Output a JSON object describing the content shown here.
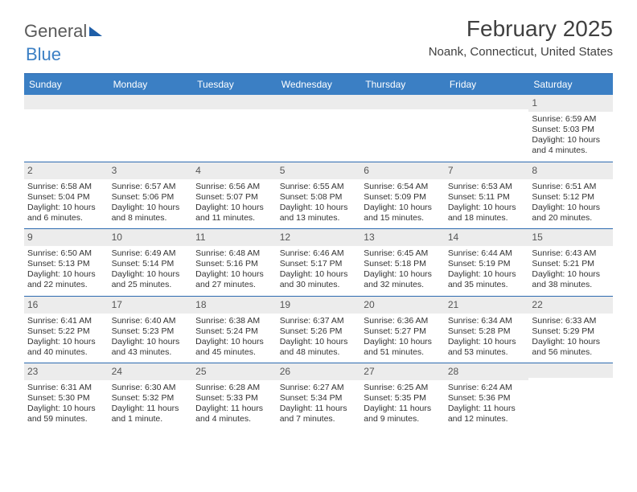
{
  "logo": {
    "word1": "General",
    "word2": "Blue"
  },
  "title": "February 2025",
  "location": "Noank, Connecticut, United States",
  "colors": {
    "header_band": "#3b7fc4",
    "rule": "#2d6ab0",
    "daynum_bg": "#ececec",
    "text": "#333333",
    "title_text": "#404040"
  },
  "typography": {
    "title_fontsize": 28,
    "location_fontsize": 15,
    "weekday_fontsize": 12,
    "cell_fontsize": 10.5
  },
  "weekdays": [
    "Sunday",
    "Monday",
    "Tuesday",
    "Wednesday",
    "Thursday",
    "Friday",
    "Saturday"
  ],
  "first_weekday_index": 6,
  "labels": {
    "sunrise_prefix": "Sunrise: ",
    "sunset_prefix": "Sunset: ",
    "daylight_prefix": "Daylight: "
  },
  "days": [
    {
      "n": 1,
      "sunrise": "6:59 AM",
      "sunset": "5:03 PM",
      "daylight": "10 hours and 4 minutes."
    },
    {
      "n": 2,
      "sunrise": "6:58 AM",
      "sunset": "5:04 PM",
      "daylight": "10 hours and 6 minutes."
    },
    {
      "n": 3,
      "sunrise": "6:57 AM",
      "sunset": "5:06 PM",
      "daylight": "10 hours and 8 minutes."
    },
    {
      "n": 4,
      "sunrise": "6:56 AM",
      "sunset": "5:07 PM",
      "daylight": "10 hours and 11 minutes."
    },
    {
      "n": 5,
      "sunrise": "6:55 AM",
      "sunset": "5:08 PM",
      "daylight": "10 hours and 13 minutes."
    },
    {
      "n": 6,
      "sunrise": "6:54 AM",
      "sunset": "5:09 PM",
      "daylight": "10 hours and 15 minutes."
    },
    {
      "n": 7,
      "sunrise": "6:53 AM",
      "sunset": "5:11 PM",
      "daylight": "10 hours and 18 minutes."
    },
    {
      "n": 8,
      "sunrise": "6:51 AM",
      "sunset": "5:12 PM",
      "daylight": "10 hours and 20 minutes."
    },
    {
      "n": 9,
      "sunrise": "6:50 AM",
      "sunset": "5:13 PM",
      "daylight": "10 hours and 22 minutes."
    },
    {
      "n": 10,
      "sunrise": "6:49 AM",
      "sunset": "5:14 PM",
      "daylight": "10 hours and 25 minutes."
    },
    {
      "n": 11,
      "sunrise": "6:48 AM",
      "sunset": "5:16 PM",
      "daylight": "10 hours and 27 minutes."
    },
    {
      "n": 12,
      "sunrise": "6:46 AM",
      "sunset": "5:17 PM",
      "daylight": "10 hours and 30 minutes."
    },
    {
      "n": 13,
      "sunrise": "6:45 AM",
      "sunset": "5:18 PM",
      "daylight": "10 hours and 32 minutes."
    },
    {
      "n": 14,
      "sunrise": "6:44 AM",
      "sunset": "5:19 PM",
      "daylight": "10 hours and 35 minutes."
    },
    {
      "n": 15,
      "sunrise": "6:43 AM",
      "sunset": "5:21 PM",
      "daylight": "10 hours and 38 minutes."
    },
    {
      "n": 16,
      "sunrise": "6:41 AM",
      "sunset": "5:22 PM",
      "daylight": "10 hours and 40 minutes."
    },
    {
      "n": 17,
      "sunrise": "6:40 AM",
      "sunset": "5:23 PM",
      "daylight": "10 hours and 43 minutes."
    },
    {
      "n": 18,
      "sunrise": "6:38 AM",
      "sunset": "5:24 PM",
      "daylight": "10 hours and 45 minutes."
    },
    {
      "n": 19,
      "sunrise": "6:37 AM",
      "sunset": "5:26 PM",
      "daylight": "10 hours and 48 minutes."
    },
    {
      "n": 20,
      "sunrise": "6:36 AM",
      "sunset": "5:27 PM",
      "daylight": "10 hours and 51 minutes."
    },
    {
      "n": 21,
      "sunrise": "6:34 AM",
      "sunset": "5:28 PM",
      "daylight": "10 hours and 53 minutes."
    },
    {
      "n": 22,
      "sunrise": "6:33 AM",
      "sunset": "5:29 PM",
      "daylight": "10 hours and 56 minutes."
    },
    {
      "n": 23,
      "sunrise": "6:31 AM",
      "sunset": "5:30 PM",
      "daylight": "10 hours and 59 minutes."
    },
    {
      "n": 24,
      "sunrise": "6:30 AM",
      "sunset": "5:32 PM",
      "daylight": "11 hours and 1 minute."
    },
    {
      "n": 25,
      "sunrise": "6:28 AM",
      "sunset": "5:33 PM",
      "daylight": "11 hours and 4 minutes."
    },
    {
      "n": 26,
      "sunrise": "6:27 AM",
      "sunset": "5:34 PM",
      "daylight": "11 hours and 7 minutes."
    },
    {
      "n": 27,
      "sunrise": "6:25 AM",
      "sunset": "5:35 PM",
      "daylight": "11 hours and 9 minutes."
    },
    {
      "n": 28,
      "sunrise": "6:24 AM",
      "sunset": "5:36 PM",
      "daylight": "11 hours and 12 minutes."
    }
  ]
}
